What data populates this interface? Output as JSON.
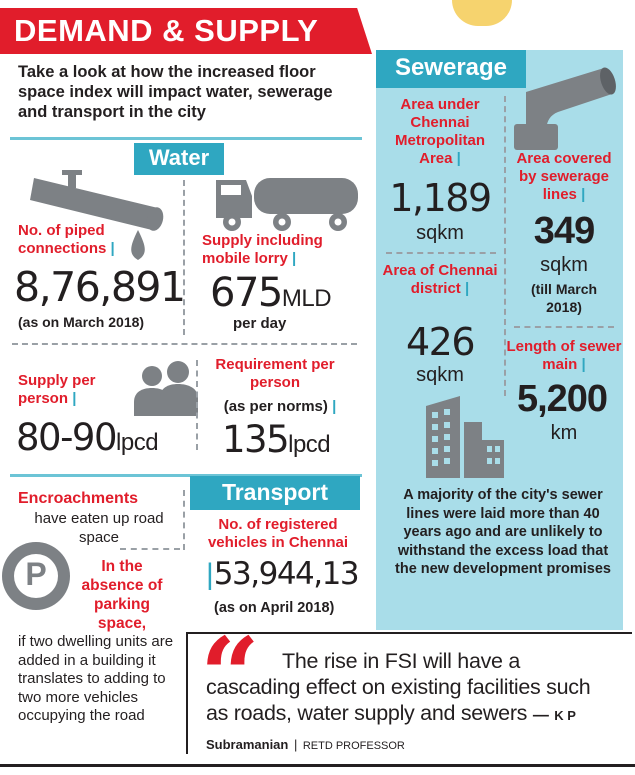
{
  "colors": {
    "red": "#e11d2b",
    "teal": "#2fa7c1",
    "light_teal": "#a9dde9",
    "gray_icon": "#7d8185",
    "dark": "#231f20"
  },
  "header": {
    "title": "DEMAND & SUPPLY"
  },
  "intro": {
    "text": "Take a look at how the increased floor space index will impact water, sewerage and transport in the city"
  },
  "water": {
    "heading": "Water",
    "piped": {
      "label": "No. of piped connections",
      "value": "8,76,891",
      "note": "(as on March 2018)"
    },
    "supply": {
      "label": "Supply including mobile lorry",
      "value": "675",
      "unit": "MLD",
      "note": "per day"
    },
    "supply_per_person": {
      "label": "Supply per person",
      "value": "80-90",
      "unit": "lpcd"
    },
    "requirement": {
      "label": "Requirement per person",
      "note": "(as per norms)",
      "value": "135",
      "unit": "lpcd"
    }
  },
  "sewerage": {
    "heading": "Sewerage",
    "cma_area": {
      "label": "Area under Chennai Metropolitan Area",
      "value": "1,189",
      "unit": "sqkm"
    },
    "district_area": {
      "label": "Area of Chennai district",
      "value": "426",
      "unit": "sqkm"
    },
    "covered": {
      "label": "Area covered by sewerage lines",
      "value": "349",
      "unit": "sqkm",
      "note": "(till March 2018)"
    },
    "sewer_main": {
      "label": "Length of sewer main",
      "value": "5,200",
      "unit": "km"
    },
    "summary": "A majority of the city's sewer lines were laid more than 40 years ago and are unlikely to withstand the excess load that the new development promises"
  },
  "encroachment": {
    "title": "Encroachments",
    "line2": "have eaten up road space",
    "parking_symbol": "P",
    "bold_text": "In the absence of parking space,",
    "rest_text": "if two dwelling units are added in a building it translates to adding to two more vehicles occupying the road"
  },
  "transport": {
    "heading": "Transport",
    "label": "No. of registered vehicles in Chennai",
    "value": "53,944,13",
    "note": "(as on April 2018)"
  },
  "quote": {
    "mark": "“",
    "text": "The rise in FSI will have a cascading effect on existing facilities such as roads, water supply and sewers",
    "dash": "—",
    "author": "K P Subramanian",
    "role": "RETD PROFESSOR"
  }
}
